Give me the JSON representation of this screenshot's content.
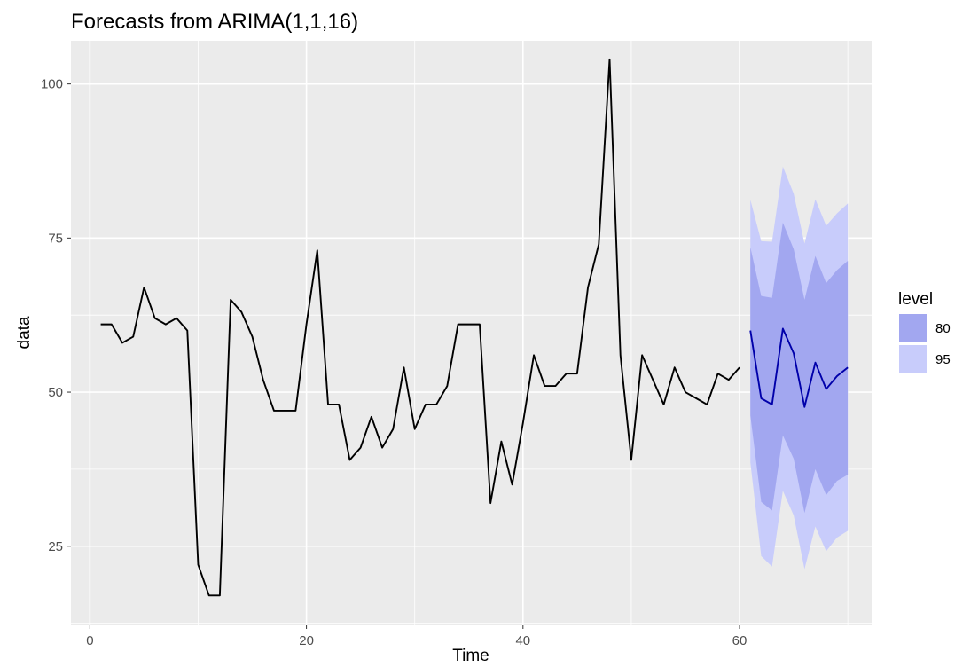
{
  "chart_data": {
    "type": "line",
    "title": "Forecasts from ARIMA(1,1,16)",
    "xlabel": "Time",
    "ylabel": "data",
    "xlim": [
      -1.75,
      72.2
    ],
    "ylim": [
      12.3,
      107.0
    ],
    "x_ticks": [
      0,
      20,
      40,
      60
    ],
    "y_ticks": [
      25,
      50,
      75,
      100
    ],
    "grid": true,
    "legend_position": "right",
    "colors": {
      "panel": "#ebebeb",
      "grid": "#ffffff",
      "series": "#000000",
      "forecast": "#0000aa",
      "band80": "#a2a7f0",
      "band95": "#c8ccfb"
    },
    "legend": {
      "title": "level",
      "entries": [
        {
          "label": "80",
          "color": "#a2a7f0"
        },
        {
          "label": "95",
          "color": "#c8ccfb"
        }
      ]
    },
    "series": [
      {
        "x": [
          1,
          2,
          3,
          4,
          5,
          6,
          7,
          8,
          9,
          10,
          11,
          12,
          13,
          14,
          15,
          16,
          17,
          18,
          19,
          20,
          21,
          22,
          23,
          24,
          25,
          26,
          27,
          28,
          29,
          30,
          31,
          32,
          33,
          34,
          35,
          36,
          37,
          38,
          39,
          40,
          41,
          42,
          43,
          44,
          45,
          46,
          47,
          48,
          49,
          50,
          51,
          52,
          53,
          54,
          55,
          56,
          57,
          58,
          59,
          60
        ],
        "values": [
          61,
          61,
          58,
          59,
          67,
          62,
          61,
          62,
          60,
          22,
          17,
          17,
          65,
          63,
          59,
          52,
          47,
          47,
          47,
          61,
          73,
          48,
          48,
          39,
          41,
          46,
          41,
          44,
          54,
          44,
          48,
          48,
          51,
          61,
          61,
          61,
          32,
          42,
          35,
          45,
          56,
          51,
          51,
          53,
          53,
          67,
          74,
          104,
          56,
          39,
          56,
          52,
          48,
          54,
          50,
          49,
          48,
          53,
          52,
          54
        ]
      }
    ],
    "forecast": {
      "x": [
        61,
        62,
        63,
        64,
        65,
        66,
        67,
        68,
        69,
        70
      ],
      "mean": [
        60,
        49,
        48,
        60.3,
        56.3,
        47.6,
        54.8,
        50.5,
        52.6,
        54
      ],
      "lo80": [
        46.2,
        32.2,
        30.8,
        43,
        39.2,
        30.4,
        37.5,
        33.3,
        35.6,
        36.6
      ],
      "hi80": [
        73.5,
        65.6,
        65.3,
        77.5,
        73.2,
        65,
        72.1,
        67.7,
        69.8,
        71.3
      ],
      "lo95": [
        38.6,
        23.4,
        21.7,
        34,
        30,
        21.3,
        28.2,
        24.2,
        26.4,
        27.5
      ],
      "hi95": [
        81.2,
        74.5,
        74.4,
        86.6,
        82.2,
        74.1,
        81.3,
        77,
        79,
        80.6
      ]
    }
  }
}
